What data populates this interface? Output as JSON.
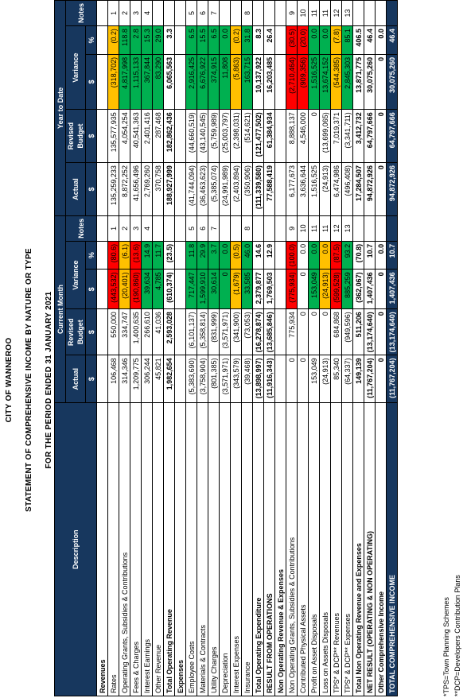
{
  "header": {
    "org": "CITY OF WANNEROO",
    "title": "STATEMENT OF COMPREHENSIVE INCOME BY NATURE OR TYPE",
    "period": "FOR THE PERIOD ENDED 31 JANUARY 2021"
  },
  "table": {
    "columns": {
      "description": "Description",
      "current_month": "Current Month",
      "year_to_date": "Year to Date",
      "actual": "Actual",
      "revised_budget": "Revised Budget",
      "variance": "Variance",
      "notes": "Notes",
      "dollar": "$",
      "percent": "%"
    },
    "rows": [
      {
        "description": "Revenues",
        "bold": true
      },
      {
        "description": "Rates",
        "cm": {
          "actual": "106,468",
          "budget": "550,000",
          "variance": "(443,532)",
          "pct": "(80.6)",
          "note": "1"
        },
        "cm_fill": "#ff0000",
        "ytd": {
          "actual": "135,259,233",
          "budget": "135,577,935",
          "variance": "(318,702)",
          "pct": "(0.2)",
          "note": "1"
        },
        "ytd_fill": "#ffc000"
      },
      {
        "description": "Operating Grants, Subsidies & Contributions",
        "cm": {
          "actual": "314,346",
          "budget": "334,747",
          "variance": "(20,401)",
          "pct": "(6.1)",
          "note": "2"
        },
        "cm_fill": "#ffc000",
        "ytd": {
          "actual": "8,872,252",
          "budget": "4,054,254",
          "variance": "4,817,998",
          "pct": "118.8",
          "note": "2"
        },
        "ytd_fill": "#00b050"
      },
      {
        "description": "Fees & Charges",
        "cm": {
          "actual": "1,209,775",
          "budget": "1,400,635",
          "variance": "(190,860)",
          "pct": "(13.6)",
          "note": "3"
        },
        "cm_fill": "#ff0000",
        "ytd": {
          "actual": "41,656,496",
          "budget": "40,541,363",
          "variance": "1,115,133",
          "pct": "2.8",
          "note": "3"
        },
        "ytd_fill": "#00b050"
      },
      {
        "description": "Interest Earnings",
        "cm": {
          "actual": "306,244",
          "budget": "266,610",
          "variance": "39,634",
          "pct": "14.9",
          "note": "4"
        },
        "cm_fill": "#00b050",
        "ytd": {
          "actual": "2,769,260",
          "budget": "2,401,416",
          "variance": "367,844",
          "pct": "15.3",
          "note": "4"
        },
        "ytd_fill": "#00b050"
      },
      {
        "description": "Other Revenue",
        "cm": {
          "actual": "45,821",
          "budget": "41,036",
          "variance": "4,785",
          "pct": "11.7"
        },
        "cm_fill": "#00b050",
        "ytd": {
          "actual": "370,758",
          "budget": "287,468",
          "variance": "83,290",
          "pct": "29.0"
        },
        "ytd_fill": "#00b050"
      },
      {
        "description": "Total Operating Revenue",
        "bold": true,
        "cm": {
          "actual": "1,982,654",
          "budget": "2,593,028",
          "variance": "(610,374)",
          "pct": "(23.5)"
        },
        "ytd": {
          "actual": "188,927,999",
          "budget": "182,862,436",
          "variance": "6,065,563",
          "pct": "3.3"
        }
      },
      {
        "description": "Expenses",
        "bold": true
      },
      {
        "description": "Employee Costs",
        "cm": {
          "actual": "(5,383,690)",
          "budget": "(6,101,137)",
          "variance": "717,447",
          "pct": "11.8",
          "note": "5"
        },
        "cm_fill": "#00b050",
        "ytd": {
          "actual": "(41,744,094)",
          "budget": "(44,660,519)",
          "variance": "2,916,425",
          "pct": "6.5",
          "note": "5"
        },
        "ytd_fill": "#00b050"
      },
      {
        "description": "Materials & Contracts",
        "cm": {
          "actual": "(3,758,904)",
          "budget": "(5,358,814)",
          "variance": "1,599,910",
          "pct": "29.9",
          "note": "6"
        },
        "cm_fill": "#00b050",
        "ytd": {
          "actual": "(36,463,623)",
          "budget": "(43,140,545)",
          "variance": "6,676,922",
          "pct": "15.5",
          "note": "6"
        },
        "ytd_fill": "#00b050"
      },
      {
        "description": "Utility Charges",
        "cm": {
          "actual": "(801,385)",
          "budget": "(831,999)",
          "variance": "30,614",
          "pct": "3.7",
          "note": "7"
        },
        "cm_fill": "#00b050",
        "ytd": {
          "actual": "(5,385,074)",
          "budget": "(5,759,989)",
          "variance": "374,915",
          "pct": "6.5",
          "note": "7"
        },
        "ytd_fill": "#00b050"
      },
      {
        "description": "Depreciation",
        "cm": {
          "actual": "(3,571,971)",
          "budget": "(3,571,971)",
          "variance": "0",
          "pct": "0.0"
        },
        "cm_fill": "#00b050",
        "ytd": {
          "actual": "(24,991,989)",
          "budget": "(25,003,797)",
          "variance": "11,808",
          "pct": "0.0"
        },
        "ytd_fill": "#00b050"
      },
      {
        "description": "Interest Expenses",
        "cm": {
          "actual": "(343,579)",
          "budget": "(341,900)",
          "variance": "(1,679)",
          "pct": "(0.5)"
        },
        "cm_fill": "#ffc000",
        "ytd": {
          "actual": "(2,403,894)",
          "budget": "(2,398,031)",
          "variance": "(5,863)",
          "pct": "(0.2)"
        },
        "ytd_fill": "#ffc000"
      },
      {
        "description": "Insurance",
        "cm": {
          "actual": "(39,468)",
          "budget": "(73,053)",
          "variance": "33,585",
          "pct": "46.0",
          "note": "8"
        },
        "cm_fill": "#00b050",
        "ytd": {
          "actual": "(350,906)",
          "budget": "(514,621)",
          "variance": "163,715",
          "pct": "31.8",
          "note": "8"
        },
        "ytd_fill": "#00b050"
      },
      {
        "description": "Total Operating Expenditure",
        "bold": true,
        "cm": {
          "actual": "(13,898,997)",
          "budget": "(16,278,874)",
          "variance": "2,379,877",
          "pct": "14.6"
        },
        "ytd": {
          "actual": "(111,339,580)",
          "budget": "(121,477,502)",
          "variance": "10,137,922",
          "pct": "8.3"
        }
      },
      {
        "description": "RESULT FROM OPERATIONS",
        "bold": true,
        "cm": {
          "actual": "(11,916,343)",
          "budget": "(13,685,846)",
          "variance": "1,769,503",
          "pct": "12.9"
        },
        "ytd": {
          "actual": "77,588,419",
          "budget": "61,384,934",
          "variance": "16,203,485",
          "pct": "26.4"
        }
      },
      {
        "description": "Non Operating Revenue & Expenses",
        "bold": true
      },
      {
        "description": "Non Operating Grants, Subsidies & Contributions",
        "cm": {
          "actual": "0",
          "budget": "775,934",
          "variance": "(775,934)",
          "pct": "(100.0)",
          "note": "9"
        },
        "cm_fill": "#ff0000",
        "ytd": {
          "actual": "6,177,673",
          "budget": "8,888,137",
          "variance": "(2,710,464)",
          "pct": "(30.5)",
          "note": "9"
        },
        "ytd_fill": "#ff0000"
      },
      {
        "description": "Contributed Physical Assets",
        "cm": {
          "actual": "0",
          "budget": "0",
          "variance": "0",
          "pct": "0.0",
          "note": "10"
        },
        "ytd": {
          "actual": "3,636,644",
          "budget": "4,546,000",
          "variance": "(909,356)",
          "pct": "(20.0)",
          "note": "10"
        },
        "ytd_fill": "#ff0000"
      },
      {
        "description": "Profit on Asset Disposals",
        "cm": {
          "actual": "153,049",
          "budget": "0",
          "variance": "153,049",
          "pct": "0.0",
          "note": "11"
        },
        "cm_fill": "#00b050",
        "ytd": {
          "actual": "1,516,525",
          "budget": "0",
          "variance": "1,516,525",
          "pct": "0.0",
          "note": "11"
        },
        "ytd_fill": "#00b050"
      },
      {
        "description": "Loss on Assets Disposals",
        "cm": {
          "actual": "(24,913)",
          "budget": "0",
          "variance": "(24,913)",
          "pct": "0.0",
          "note": "11"
        },
        "cm_fill": "#ffc000",
        "ytd": {
          "actual": "(24,913)",
          "budget": "(13,699,065)",
          "variance": "13,674,152",
          "pct": "0.0",
          "note": "11"
        },
        "ytd_fill": "#00b050"
      },
      {
        "description": "TPS* & DCP** Revenues",
        "cm": {
          "actual": "85,340",
          "budget": "684,868",
          "variance": "(599,528)",
          "pct": "(87.5)",
          "note": "12"
        },
        "cm_fill": "#ff0000",
        "ytd": {
          "actual": "6,474,986",
          "budget": "7,019,371",
          "variance": "(544,385)",
          "pct": "(7.8)",
          "note": "12"
        },
        "ytd_fill": "#ffc000"
      },
      {
        "description": "TPS* & DCP** Expenses",
        "cm": {
          "actual": "(64,337)",
          "budget": "(949,596)",
          "variance": "885,259",
          "pct": "93.2",
          "note": "13"
        },
        "cm_fill": "#00b050",
        "ytd": {
          "actual": "(496,408)",
          "budget": "(3,341,711)",
          "variance": "2,845,303",
          "pct": "85.1",
          "note": "13"
        },
        "ytd_fill": "#00b050"
      },
      {
        "description": "Total Non Operating Revenue and Expenses",
        "bold": true,
        "cm": {
          "actual": "149,139",
          "budget": "511,206",
          "variance": "(362,067)",
          "pct": "(70.8)"
        },
        "ytd": {
          "actual": "17,284,507",
          "budget": "3,412,732",
          "variance": "13,871,775",
          "pct": "406.5"
        }
      },
      {
        "description": "NET RESULT (OPERATING & NON OPERATING)",
        "bold": true,
        "cm": {
          "actual": "(11,767,204)",
          "budget": "(13,174,640)",
          "variance": "1,407,436",
          "pct": "10.7"
        },
        "ytd": {
          "actual": "94,872,926",
          "budget": "64,797,666",
          "variance": "30,075,260",
          "pct": "46.4"
        }
      },
      {
        "description": "Other Comprehensive Income",
        "bold": true,
        "cm": {
          "actual": "0",
          "budget": "0",
          "variance": "0",
          "pct": "0.0"
        },
        "ytd": {
          "actual": "0",
          "budget": "0",
          "variance": "0",
          "pct": "0.0"
        }
      },
      {
        "description": "TOTAL COMPREHENSIVE INCOME",
        "bold": true,
        "row_fill": "#17375e",
        "cm": {
          "actual": "(11,767,204)",
          "budget": "(13,174,640)",
          "variance": "1,407,436",
          "pct": "10.7"
        },
        "ytd": {
          "actual": "94,872,926",
          "budget": "64,797,666",
          "variance": "30,075,260",
          "pct": "46.4"
        }
      }
    ]
  },
  "footnotes": [
    "*TPS=Town Planning Schemes",
    "**DCP=Developers Contribution Plans"
  ]
}
